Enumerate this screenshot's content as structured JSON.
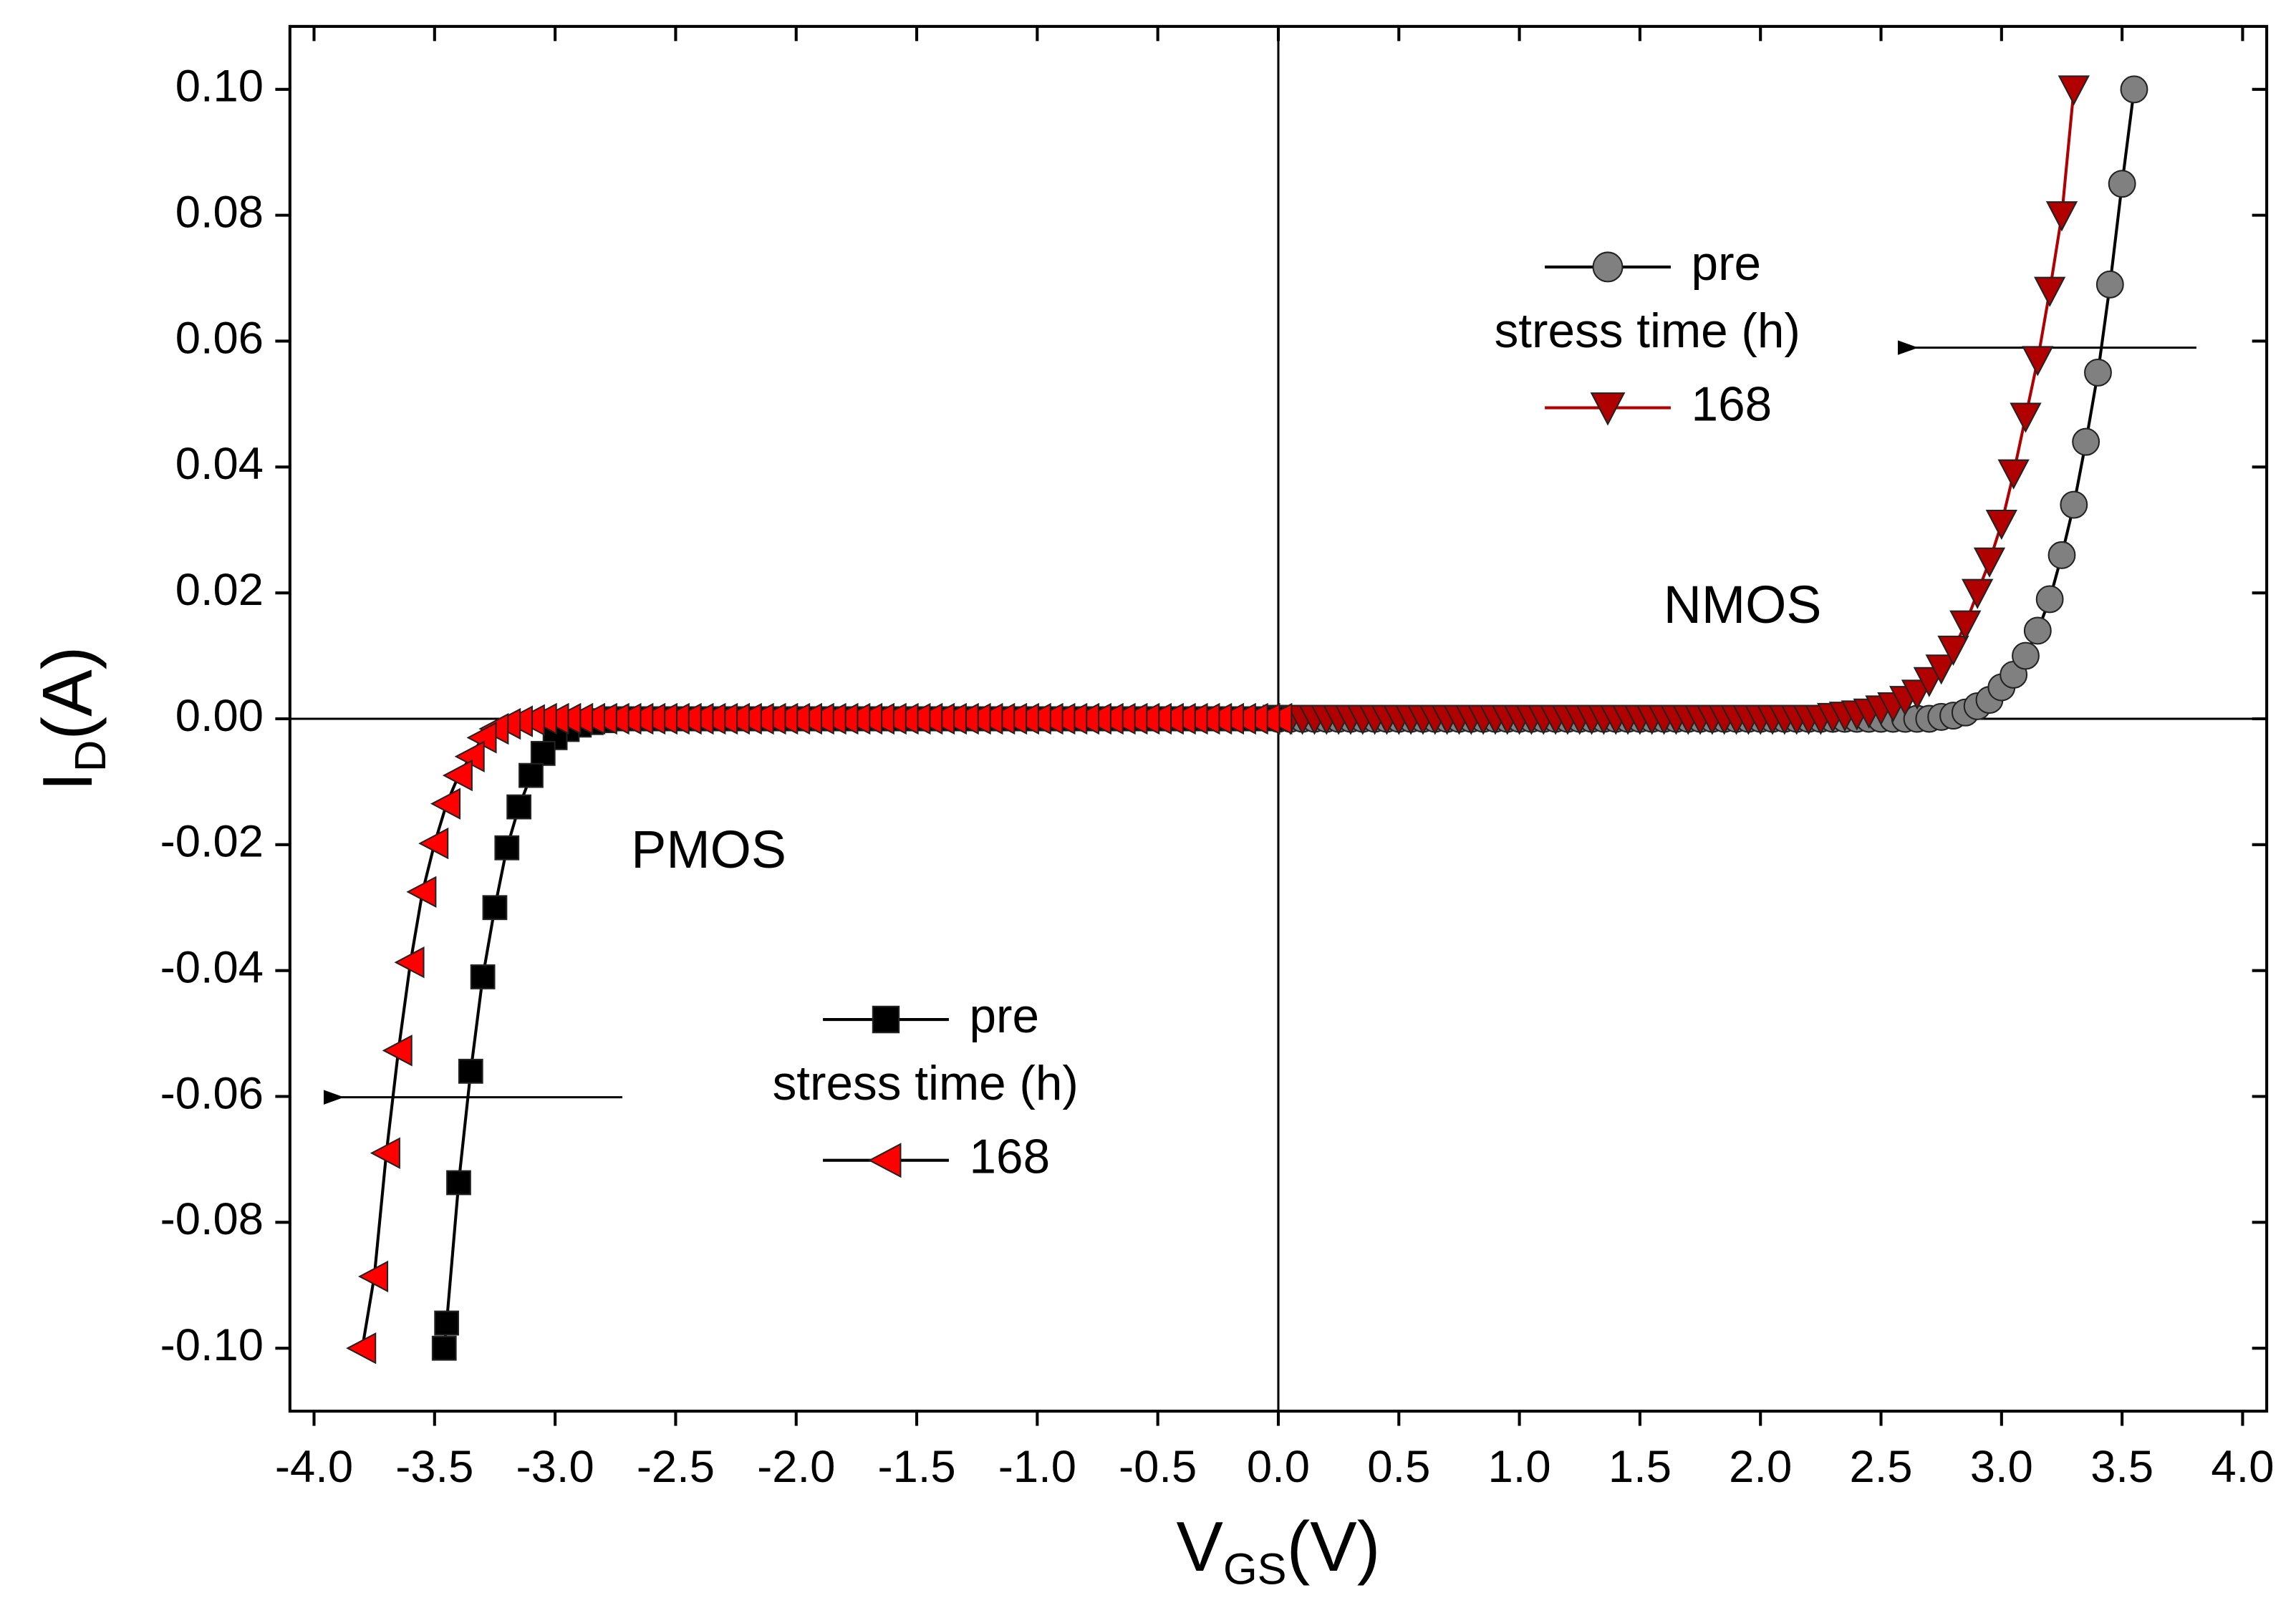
{
  "chart_data": {
    "type": "scatter",
    "xlabel": [
      "V",
      "GS",
      "(V)"
    ],
    "ylabel": [
      "I",
      "D",
      "(A)"
    ],
    "xlim": [
      -4.1,
      4.1
    ],
    "ylim": [
      -0.11,
      0.11
    ],
    "xticks": [
      {
        "value": -4,
        "label": "-4.0"
      },
      -3.5,
      {
        "value": -3,
        "label": "-3.0"
      },
      -2.5,
      {
        "value": -2,
        "label": "-2.0"
      },
      -1.5,
      {
        "value": -1,
        "label": "-1.0"
      },
      -0.5,
      {
        "value": 0,
        "label": "0.0"
      },
      0.5,
      {
        "value": 1,
        "label": "1.0"
      },
      1.5,
      {
        "value": 2,
        "label": "2.0"
      },
      2.5,
      {
        "value": 3,
        "label": "3.0"
      },
      3.5,
      {
        "value": 4,
        "label": "4.0"
      }
    ],
    "yticks": [
      {
        "value": -0.1,
        "label": "-0.10"
      },
      -0.08,
      -0.06,
      -0.04,
      -0.02,
      {
        "value": 0,
        "label": "0.00"
      },
      0.02,
      0.04,
      0.06,
      0.08,
      {
        "value": 0.1,
        "label": "0.10"
      }
    ],
    "zero_lines": true,
    "annotations": [
      "NMOS",
      "PMOS"
    ],
    "legends": [
      {
        "title": "stress time (h)",
        "series": [
          0,
          1
        ]
      },
      {
        "title": "stress time (h)",
        "series": [
          2,
          3
        ]
      }
    ],
    "series": [
      {
        "name": "pre",
        "color": "#808080",
        "line_color": "#000000",
        "marker": "circle",
        "x": [
          0,
          0.05,
          0.1,
          0.15,
          0.2,
          0.25,
          0.3,
          0.35,
          0.4,
          0.45,
          0.5,
          0.55,
          0.6,
          0.65,
          0.7,
          0.75,
          0.8,
          0.85,
          0.9,
          0.95,
          1,
          1.05,
          1.1,
          1.15,
          1.2,
          1.25,
          1.3,
          1.35,
          1.4,
          1.45,
          1.5,
          1.55,
          1.6,
          1.65,
          1.7,
          1.75,
          1.8,
          1.85,
          1.9,
          1.95,
          2,
          2.05,
          2.1,
          2.15,
          2.2,
          2.25,
          2.3,
          2.35,
          2.4,
          2.45,
          2.5,
          2.55,
          2.6,
          2.65,
          2.7,
          2.75,
          2.8,
          2.85,
          2.9,
          2.95,
          3,
          3.05,
          3.1,
          3.15,
          3.2,
          3.25,
          3.3,
          3.35,
          3.4,
          3.45,
          3.5,
          3.55
        ],
        "values": [
          0,
          0,
          0,
          0,
          0,
          0,
          0,
          0,
          0,
          0,
          0,
          0,
          0,
          0,
          0,
          0,
          0,
          0,
          0,
          0,
          0,
          0,
          0,
          0,
          0,
          0,
          0,
          0,
          0,
          0,
          0,
          0,
          0,
          0,
          0,
          0,
          0,
          0,
          0,
          0,
          0,
          0,
          0,
          0,
          0,
          0,
          0,
          0,
          0,
          0,
          0,
          0,
          0,
          0,
          0,
          0.0003,
          0.0005,
          0.001,
          0.002,
          0.003,
          0.005,
          0.007,
          0.01,
          0.014,
          0.019,
          0.026,
          0.034,
          0.044,
          0.055,
          0.069,
          0.085,
          0.1
        ]
      },
      {
        "name": "168",
        "color": "#b00000",
        "line_color": "#b00000",
        "marker": "triangle-down",
        "x": [
          0,
          0.05,
          0.1,
          0.15,
          0.2,
          0.25,
          0.3,
          0.35,
          0.4,
          0.45,
          0.5,
          0.55,
          0.6,
          0.65,
          0.7,
          0.75,
          0.8,
          0.85,
          0.9,
          0.95,
          1,
          1.05,
          1.1,
          1.15,
          1.2,
          1.25,
          1.3,
          1.35,
          1.4,
          1.45,
          1.5,
          1.55,
          1.6,
          1.65,
          1.7,
          1.75,
          1.8,
          1.85,
          1.9,
          1.95,
          2,
          2.05,
          2.1,
          2.15,
          2.2,
          2.25,
          2.3,
          2.35,
          2.4,
          2.45,
          2.5,
          2.55,
          2.6,
          2.65,
          2.7,
          2.75,
          2.8,
          2.85,
          2.9,
          2.95,
          3,
          3.05,
          3.1,
          3.15,
          3.2,
          3.25,
          3.3
        ],
        "values": [
          0,
          0,
          0,
          0,
          0,
          0,
          0,
          0,
          0,
          0,
          0,
          0,
          0,
          0,
          0,
          0,
          0,
          0,
          0,
          0,
          0,
          0,
          0,
          0,
          0,
          0,
          0,
          0,
          0,
          0,
          0,
          0,
          0,
          0,
          0,
          0,
          0,
          0,
          0,
          0,
          0,
          0,
          0,
          0,
          0,
          0,
          0.0003,
          0.0005,
          0.0007,
          0.001,
          0.0015,
          0.002,
          0.003,
          0.004,
          0.006,
          0.008,
          0.011,
          0.015,
          0.02,
          0.025,
          0.031,
          0.039,
          0.048,
          0.057,
          0.068,
          0.08,
          0.1
        ]
      },
      {
        "name": "pre",
        "color": "#000000",
        "line_color": "#000000",
        "marker": "square",
        "x": [
          0,
          -0.05,
          -0.1,
          -0.15,
          -0.2,
          -0.25,
          -0.3,
          -0.35,
          -0.4,
          -0.45,
          -0.5,
          -0.55,
          -0.6,
          -0.65,
          -0.7,
          -0.75,
          -0.8,
          -0.85,
          -0.9,
          -0.95,
          -1,
          -1.05,
          -1.1,
          -1.15,
          -1.2,
          -1.25,
          -1.3,
          -1.35,
          -1.4,
          -1.45,
          -1.5,
          -1.55,
          -1.6,
          -1.65,
          -1.7,
          -1.75,
          -1.8,
          -1.85,
          -1.9,
          -1.95,
          -2,
          -2.05,
          -2.1,
          -2.15,
          -2.2,
          -2.25,
          -2.3,
          -2.35,
          -2.4,
          -2.45,
          -2.5,
          -2.55,
          -2.6,
          -2.65,
          -2.7,
          -2.75,
          -2.8,
          -2.85,
          -2.9,
          -2.95,
          -3,
          -3.05,
          -3.1,
          -3.15,
          -3.2,
          -3.25,
          -3.3,
          -3.35,
          -3.4,
          -3.45,
          -3.46
        ],
        "values": [
          0,
          0,
          0,
          0,
          0,
          0,
          0,
          0,
          0,
          0,
          0,
          0,
          0,
          0,
          0,
          0,
          0,
          0,
          0,
          0,
          0,
          0,
          0,
          0,
          0,
          0,
          0,
          0,
          0,
          0,
          0,
          0,
          0,
          0,
          0,
          0,
          0,
          0,
          0,
          0,
          0,
          0,
          0,
          0,
          0,
          0,
          0,
          0,
          0,
          0,
          0,
          0,
          0,
          0,
          0,
          0,
          -0.0003,
          -0.0006,
          -0.001,
          -0.0017,
          -0.003,
          -0.0055,
          -0.009,
          -0.014,
          -0.0205,
          -0.03,
          -0.041,
          -0.056,
          -0.0737,
          -0.096,
          -0.1
        ]
      },
      {
        "name": "168",
        "color": "#ff0000",
        "line_color": "#000000",
        "marker": "triangle-left",
        "x": [
          0,
          -0.05,
          -0.1,
          -0.15,
          -0.2,
          -0.25,
          -0.3,
          -0.35,
          -0.4,
          -0.45,
          -0.5,
          -0.55,
          -0.6,
          -0.65,
          -0.7,
          -0.75,
          -0.8,
          -0.85,
          -0.9,
          -0.95,
          -1,
          -1.05,
          -1.1,
          -1.15,
          -1.2,
          -1.25,
          -1.3,
          -1.35,
          -1.4,
          -1.45,
          -1.5,
          -1.55,
          -1.6,
          -1.65,
          -1.7,
          -1.75,
          -1.8,
          -1.85,
          -1.9,
          -1.95,
          -2,
          -2.05,
          -2.1,
          -2.15,
          -2.2,
          -2.25,
          -2.3,
          -2.35,
          -2.4,
          -2.45,
          -2.5,
          -2.55,
          -2.6,
          -2.65,
          -2.7,
          -2.75,
          -2.8,
          -2.85,
          -2.9,
          -2.95,
          -3,
          -3.05,
          -3.1,
          -3.15,
          -3.2,
          -3.25,
          -3.3,
          -3.35,
          -3.4,
          -3.45,
          -3.5,
          -3.55,
          -3.6,
          -3.65,
          -3.7,
          -3.75,
          -3.8
        ],
        "values": [
          0,
          0,
          0,
          0,
          0,
          0,
          0,
          0,
          0,
          0,
          0,
          0,
          0,
          0,
          0,
          0,
          0,
          0,
          0,
          0,
          0,
          0,
          0,
          0,
          0,
          0,
          0,
          0,
          0,
          0,
          0,
          0,
          0,
          0,
          0,
          0,
          0,
          0,
          0,
          0,
          0,
          0,
          0,
          0,
          0,
          0,
          0,
          0,
          0,
          0,
          0,
          0,
          0,
          0,
          0,
          0,
          0,
          0,
          0,
          0,
          0,
          0,
          -0.0002,
          -0.0004,
          -0.0008,
          -0.0016,
          -0.003,
          -0.006,
          -0.009,
          -0.0135,
          -0.0198,
          -0.0275,
          -0.0387,
          -0.0527,
          -0.069,
          -0.0886,
          -0.1
        ]
      }
    ]
  }
}
